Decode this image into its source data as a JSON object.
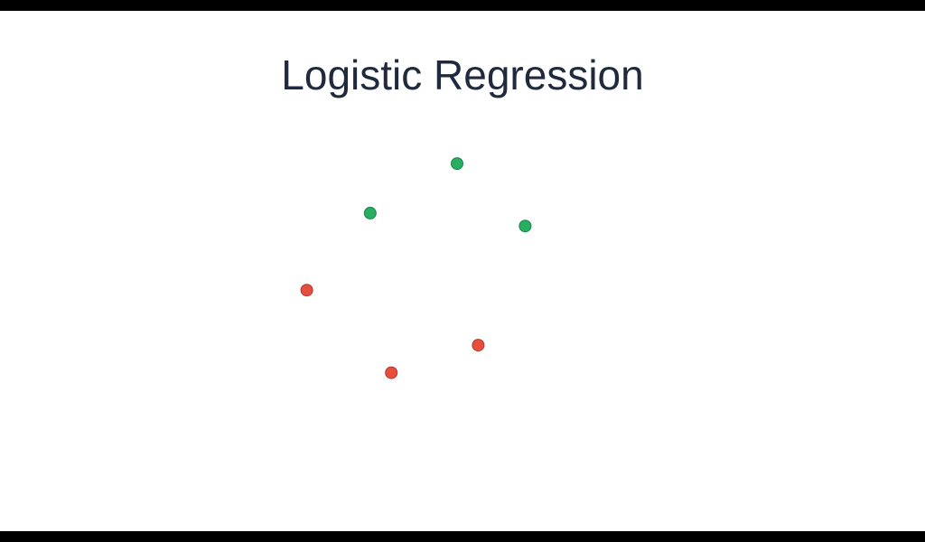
{
  "slide": {
    "title": "Logistic Regression"
  },
  "colors": {
    "class_positive": "#27ae60",
    "class_negative": "#e74c3c",
    "outline_positive": "#1e8449",
    "outline_negative": "#b03a2e",
    "title": "#1f2a3c"
  },
  "chart_data": {
    "type": "scatter",
    "title": "Logistic Regression",
    "xlabel": "",
    "ylabel": "",
    "grid": false,
    "axes_visible": false,
    "xlim": [
      0,
      10
    ],
    "ylim": [
      0,
      10
    ],
    "series": [
      {
        "class": "positive",
        "color": "#27ae60",
        "points": [
          {
            "x": 5.0,
            "y": 8.1
          },
          {
            "x": 3.15,
            "y": 6.75
          },
          {
            "x": 6.45,
            "y": 6.4
          }
        ]
      },
      {
        "class": "negative",
        "color": "#e74c3c",
        "points": [
          {
            "x": 1.8,
            "y": 4.65
          },
          {
            "x": 5.45,
            "y": 3.15
          },
          {
            "x": 3.6,
            "y": 2.4
          }
        ]
      }
    ]
  }
}
